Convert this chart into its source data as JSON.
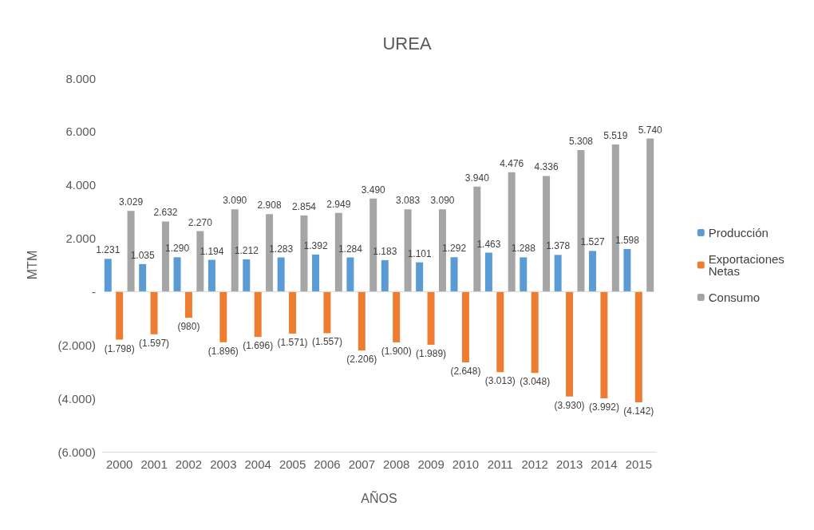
{
  "chart_data": {
    "type": "bar",
    "title": "UREA",
    "xlabel": "AÑOS",
    "ylabel": "MTM",
    "categories": [
      "2000",
      "2001",
      "2002",
      "2003",
      "2004",
      "2005",
      "2006",
      "2007",
      "2008",
      "2009",
      "2010",
      "2011",
      "2012",
      "2013",
      "2014",
      "2015"
    ],
    "series": [
      {
        "name": "Producción",
        "color": "#5b9bd5",
        "values": [
          1231,
          1035,
          1290,
          1194,
          1212,
          1283,
          1392,
          1284,
          1183,
          1101,
          1292,
          1463,
          1288,
          1378,
          1527,
          1598
        ],
        "value_labels": [
          "1.231",
          "1.035",
          "1.290",
          "1.194",
          "1.212",
          "1.283",
          "1.392",
          "1.284",
          "1.183",
          "1.101",
          "1.292",
          "1.463",
          "1.288",
          "1.378",
          "1.527",
          "1.598"
        ]
      },
      {
        "name": "Exportaciones Netas",
        "color": "#ed7d31",
        "values": [
          -1798,
          -1597,
          -980,
          -1896,
          -1696,
          -1571,
          -1557,
          -2206,
          -1900,
          -1989,
          -2648,
          -3013,
          -3048,
          -3930,
          -3992,
          -4142
        ],
        "value_labels": [
          "(1.798)",
          "(1.597)",
          "(980)",
          "(1.896)",
          "(1.696)",
          "(1.571)",
          "(1.557)",
          "(2.206)",
          "(1.900)",
          "(1.989)",
          "(2.648)",
          "(3.013)",
          "(3.048)",
          "(3.930)",
          "(3.992)",
          "(4.142)"
        ]
      },
      {
        "name": "Consumo",
        "color": "#a5a5a5",
        "values": [
          3029,
          2632,
          2270,
          3090,
          2908,
          2854,
          2949,
          3490,
          3083,
          3090,
          3940,
          4476,
          4336,
          5308,
          5519,
          5740
        ],
        "value_labels": [
          "3.029",
          "2.632",
          "2.270",
          "3.090",
          "2.908",
          "2.854",
          "2.949",
          "3.490",
          "3.083",
          "3.090",
          "3.940",
          "4.476",
          "4.336",
          "5.308",
          "5.519",
          "5.740"
        ]
      }
    ],
    "ylim": [
      -6000,
      8000
    ],
    "yticks": [
      {
        "value": -6000,
        "label": "(6.000)"
      },
      {
        "value": -4000,
        "label": "(4.000)"
      },
      {
        "value": -2000,
        "label": "(2.000)"
      },
      {
        "value": 0,
        "label": "-"
      },
      {
        "value": 2000,
        "label": "2.000"
      },
      {
        "value": 4000,
        "label": "4.000"
      },
      {
        "value": 6000,
        "label": "6.000"
      },
      {
        "value": 8000,
        "label": "8.000"
      }
    ],
    "grid": false,
    "legend": "right"
  }
}
